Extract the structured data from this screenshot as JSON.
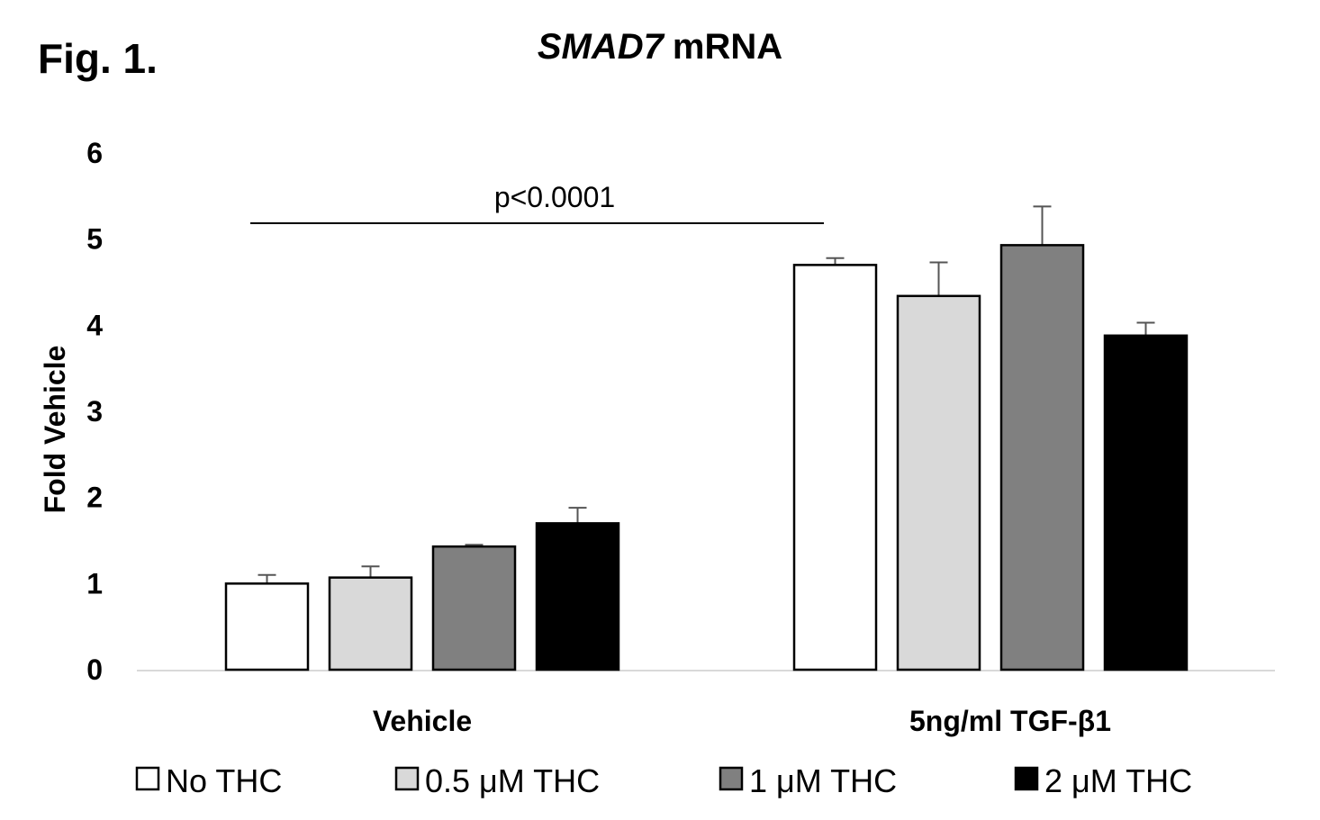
{
  "figure_label": "Fig. 1.",
  "chart_data": {
    "type": "bar",
    "title_gene": "SMAD7",
    "title_rest": "mRNA",
    "ylabel": "Fold Vehicle",
    "xlabel": "",
    "ylim": [
      0,
      6
    ],
    "yticks": [
      "0",
      "1",
      "2",
      "3",
      "4",
      "5",
      "6"
    ],
    "categories": [
      "Vehicle",
      "5ng/ml TGF-β1"
    ],
    "series": [
      {
        "name": "No THC",
        "color": "#ffffff",
        "values": [
          1.0,
          4.7
        ],
        "errors": [
          0.1,
          0.08
        ]
      },
      {
        "name": "0.5 μM THC",
        "color": "#d9d9d9",
        "values": [
          1.07,
          4.34
        ],
        "errors": [
          0.13,
          0.39
        ]
      },
      {
        "name": "1 μM THC",
        "color": "#808080",
        "values": [
          1.43,
          4.93
        ],
        "errors": [
          0.02,
          0.45
        ]
      },
      {
        "name": "2 μM THC",
        "color": "#000000",
        "values": [
          1.7,
          3.88
        ],
        "errors": [
          0.18,
          0.15
        ]
      }
    ],
    "annotation": {
      "text": "p<0.0001",
      "from_category": 0,
      "to_category": 1
    },
    "legend_position": "bottom"
  }
}
